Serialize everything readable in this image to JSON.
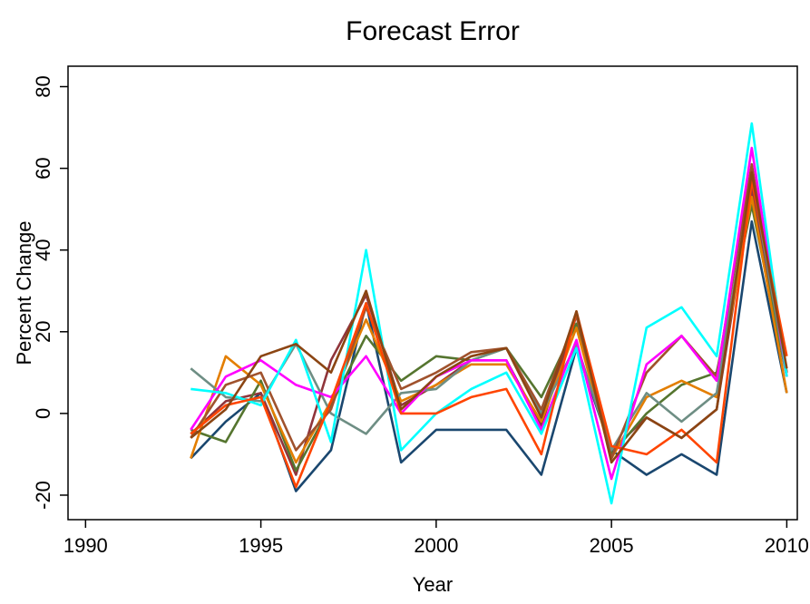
{
  "chart_data": {
    "type": "line",
    "title": "Forecast Error",
    "xlabel": "Year",
    "ylabel": "Percent Change",
    "xlim": [
      1989.5,
      2010.3
    ],
    "ylim": [
      -26,
      85
    ],
    "xticks": [
      1990,
      1995,
      2000,
      2005,
      2010
    ],
    "yticks": [
      -20,
      0,
      20,
      40,
      60,
      80
    ],
    "grid": false,
    "legend": "none",
    "x": [
      1993,
      1994,
      1995,
      1996,
      1997,
      1998,
      1999,
      2000,
      2001,
      2002,
      2003,
      2004,
      2005,
      2006,
      2007,
      2008,
      2009,
      2010
    ],
    "series": [
      {
        "color": "#1a476f",
        "values": [
          -11,
          -2,
          5,
          -19,
          -9,
          27,
          -12,
          -4,
          -4,
          -4,
          -15,
          16,
          -9,
          -15,
          -10,
          -15,
          47,
          5
        ]
      },
      {
        "color": "#90353b",
        "values": [
          -5,
          3,
          5,
          -15,
          13,
          29,
          2,
          7,
          13,
          13,
          -3,
          24,
          -9,
          -1,
          -6,
          1,
          55,
          10
        ]
      },
      {
        "color": "#55752f",
        "values": [
          -4,
          -7,
          8,
          -14,
          2,
          19,
          8,
          14,
          13,
          16,
          4,
          22,
          -10,
          0,
          7,
          10,
          51,
          9
        ]
      },
      {
        "color": "#e37e00",
        "values": [
          -11,
          14,
          7,
          -12,
          3,
          23,
          3,
          7,
          12,
          12,
          -2,
          21,
          -11,
          4,
          8,
          4,
          53,
          5
        ]
      },
      {
        "color": "#6e8e84",
        "values": [
          11,
          4,
          3,
          17,
          0,
          -5,
          5,
          6,
          13,
          16,
          0,
          17,
          -9,
          5,
          -2,
          5,
          58,
          9
        ]
      },
      {
        "color": "#a0522d",
        "values": [
          -6,
          7,
          10,
          -9,
          1,
          26,
          6,
          10,
          15,
          16,
          1,
          24,
          -11,
          10,
          19,
          9,
          61,
          10
        ]
      },
      {
        "color": "#ff00ff",
        "values": [
          -4,
          9,
          13,
          7,
          4,
          14,
          0,
          9,
          13,
          13,
          -4,
          18,
          -16,
          12,
          19,
          8,
          65,
          9
        ]
      },
      {
        "color": "#00ffff",
        "values": [
          6,
          5,
          2,
          18,
          -7,
          40,
          -9,
          0,
          6,
          10,
          -5,
          16,
          -22,
          21,
          26,
          14,
          71,
          9
        ]
      },
      {
        "color": "#ff4500",
        "values": [
          -5,
          2,
          4,
          -18,
          3,
          27,
          0,
          0,
          4,
          6,
          -10,
          25,
          -8,
          -10,
          -4,
          -12,
          57,
          14
        ]
      },
      {
        "color": "#8b4513",
        "values": [
          -6,
          1,
          14,
          17,
          10,
          30,
          1,
          9,
          14,
          16,
          -1,
          25,
          -12,
          -1,
          -6,
          1,
          59,
          11
        ]
      }
    ]
  }
}
